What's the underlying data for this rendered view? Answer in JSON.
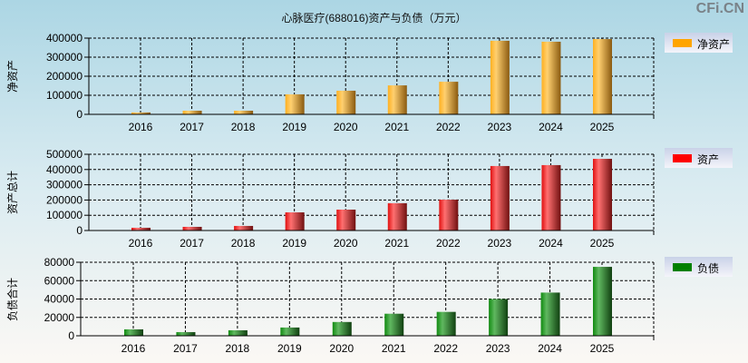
{
  "title": "心脉医疗(688016)资产与负债（万元）",
  "watermark": "CFi.CN",
  "chart_data": [
    {
      "type": "bar",
      "ylabel": "净资产",
      "legend": "净资产",
      "color": "#ffa500",
      "ylim": [
        0,
        400000
      ],
      "yticks": [
        0,
        100000,
        200000,
        300000,
        400000
      ],
      "categories": [
        "2016",
        "2017",
        "2018",
        "2019",
        "2020",
        "2021",
        "2022",
        "2023",
        "2024",
        "2025"
      ],
      "values": [
        10000,
        19000,
        19000,
        105000,
        124000,
        152000,
        171000,
        386000,
        381000,
        395000
      ],
      "grid": true,
      "legend_position": "right"
    },
    {
      "type": "bar",
      "ylabel": "资产总计",
      "legend": "资产",
      "color": "#ff0000",
      "ylim": [
        0,
        500000
      ],
      "yticks": [
        0,
        100000,
        200000,
        300000,
        400000,
        500000
      ],
      "categories": [
        "2016",
        "2017",
        "2018",
        "2019",
        "2020",
        "2021",
        "2022",
        "2023",
        "2024",
        "2025"
      ],
      "values": [
        18000,
        24000,
        30000,
        119000,
        137000,
        179000,
        202000,
        423000,
        429000,
        470000
      ],
      "grid": true,
      "legend_position": "right"
    },
    {
      "type": "bar",
      "ylabel": "负债合计",
      "legend": "负债",
      "color": "#008000",
      "ylim": [
        0,
        80000
      ],
      "yticks": [
        0,
        20000,
        40000,
        60000,
        80000
      ],
      "categories": [
        "2016",
        "2017",
        "2018",
        "2019",
        "2020",
        "2021",
        "2022",
        "2023",
        "2024",
        "2025"
      ],
      "values": [
        7000,
        4000,
        6000,
        9000,
        15000,
        24000,
        26000,
        40000,
        47000,
        75000
      ],
      "grid": true,
      "legend_position": "right"
    }
  ]
}
